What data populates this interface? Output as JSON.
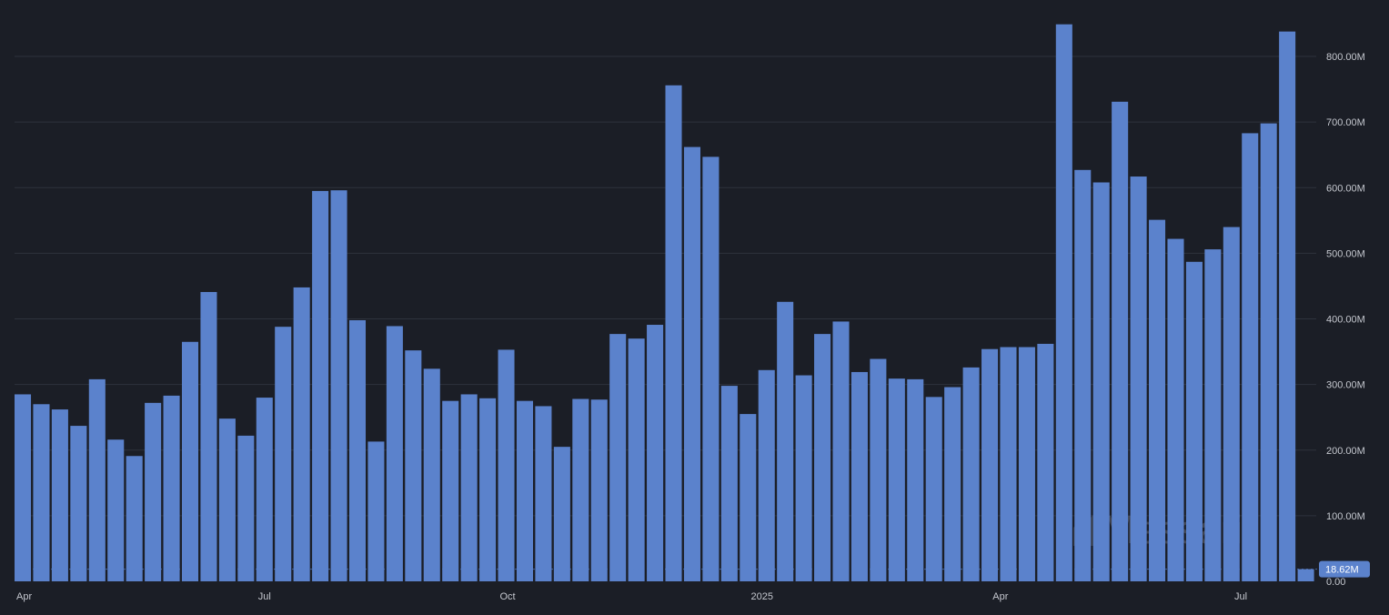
{
  "chart_data": {
    "type": "bar",
    "title": "",
    "xlabel": "",
    "ylabel": "",
    "ylim": [
      0,
      850000000
    ],
    "grid": true,
    "bar_color": "#5b82cc",
    "background": "#1b1e26",
    "y_ticks": [
      {
        "value": 0,
        "label": "0.00"
      },
      {
        "value": 100000000,
        "label": "100.00M"
      },
      {
        "value": 200000000,
        "label": "200.00M"
      },
      {
        "value": 300000000,
        "label": "300.00M"
      },
      {
        "value": 400000000,
        "label": "400.00M"
      },
      {
        "value": 500000000,
        "label": "500.00M"
      },
      {
        "value": 600000000,
        "label": "600.00M"
      },
      {
        "value": 700000000,
        "label": "700.00M"
      },
      {
        "value": 800000000,
        "label": "800.00M"
      }
    ],
    "x_labels": [
      {
        "index": 0,
        "label": "Apr"
      },
      {
        "index": 13,
        "label": "Jul"
      },
      {
        "index": 26,
        "label": "Oct"
      },
      {
        "index": 39.5,
        "label": "2025"
      },
      {
        "index": 52.5,
        "label": "Apr"
      },
      {
        "index": 65.5,
        "label": "Jul"
      }
    ],
    "values": [
      285000000,
      270000000,
      262000000,
      237000000,
      308000000,
      216000000,
      191000000,
      272000000,
      283000000,
      365000000,
      441000000,
      248000000,
      222000000,
      280000000,
      388000000,
      448000000,
      595000000,
      596000000,
      398000000,
      213000000,
      389000000,
      352000000,
      324000000,
      275000000,
      285000000,
      279000000,
      353000000,
      275000000,
      267000000,
      205000000,
      278000000,
      277000000,
      377000000,
      370000000,
      391000000,
      756000000,
      662000000,
      647000000,
      298000000,
      255000000,
      322000000,
      426000000,
      314000000,
      377000000,
      396000000,
      319000000,
      339000000,
      309000000,
      308000000,
      281000000,
      296000000,
      326000000,
      354000000,
      357000000,
      357000000,
      362000000,
      849000000,
      627000000,
      608000000,
      731000000,
      617000000,
      551000000,
      522000000,
      487000000,
      506000000,
      540000000,
      683000000,
      698000000,
      838000000,
      18620000
    ],
    "last_value_label": "18.62M",
    "badge_color": "#5b82cc"
  },
  "watermark": {
    "text": "Messari"
  }
}
